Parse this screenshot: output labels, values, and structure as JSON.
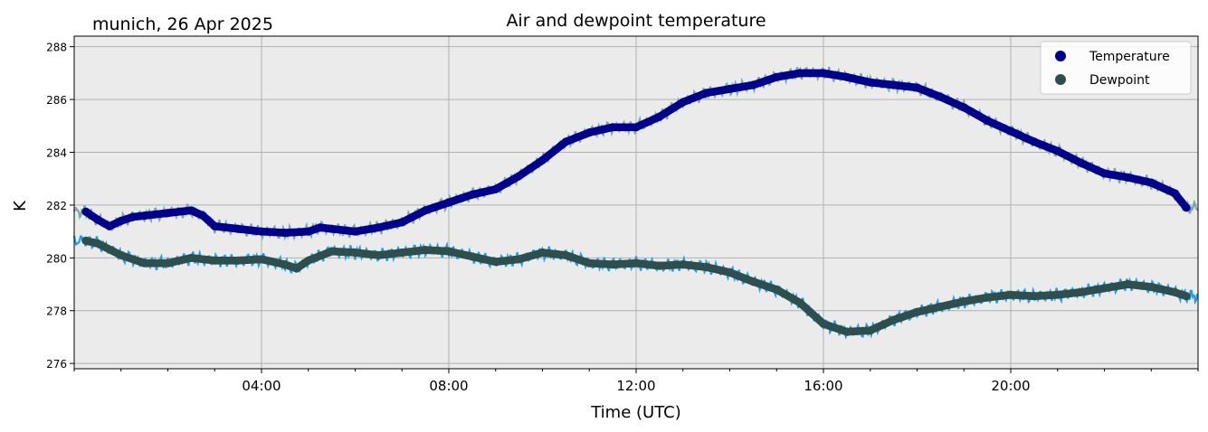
{
  "chart_data": {
    "type": "line",
    "title": "Air and dewpoint temperature",
    "subtitle": "munich, 26 Apr 2025",
    "xlabel": "Time (UTC)",
    "ylabel": "K",
    "xlim": [
      0,
      24
    ],
    "ylim": [
      275.8,
      288.4
    ],
    "x_ticks": [
      {
        "hour": 4,
        "label": "04:00"
      },
      {
        "hour": 8,
        "label": "08:00"
      },
      {
        "hour": 12,
        "label": "12:00"
      },
      {
        "hour": 16,
        "label": "16:00"
      },
      {
        "hour": 20,
        "label": "20:00"
      }
    ],
    "y_ticks": [
      276,
      278,
      280,
      282,
      284,
      286,
      288
    ],
    "grid": true,
    "legend_position": "top-right",
    "colors": {
      "plot_background": "#ebebeb",
      "grid": "#b0b0b0",
      "temperature_smooth": "#00008b",
      "temperature_raw": "#7aa7a9",
      "dewpoint_smooth": "#2f4f4f",
      "dewpoint_raw": "#1e9fe8"
    },
    "series": [
      {
        "name": "Temperature",
        "marker": "circle",
        "color": "#00008b",
        "raw_color": "#7aa7a9",
        "x": [
          0.25,
          0.5,
          0.75,
          1.0,
          1.25,
          1.5,
          2.0,
          2.5,
          2.75,
          3.0,
          3.5,
          4.0,
          4.5,
          5.0,
          5.25,
          5.5,
          6.0,
          6.5,
          7.0,
          7.5,
          8.0,
          8.5,
          9.0,
          9.5,
          10.0,
          10.5,
          11.0,
          11.5,
          12.0,
          12.5,
          13.0,
          13.5,
          14.0,
          14.5,
          15.0,
          15.5,
          16.0,
          16.5,
          17.0,
          17.5,
          18.0,
          18.5,
          19.0,
          19.5,
          20.0,
          20.5,
          21.0,
          21.5,
          22.0,
          22.5,
          23.0,
          23.5,
          23.75
        ],
        "values": [
          281.75,
          281.45,
          281.2,
          281.4,
          281.55,
          281.6,
          281.7,
          281.8,
          281.6,
          281.2,
          281.1,
          281.0,
          280.95,
          281.0,
          281.15,
          281.1,
          281.0,
          281.15,
          281.35,
          281.8,
          282.1,
          282.4,
          282.6,
          283.1,
          283.7,
          284.4,
          284.75,
          284.95,
          284.95,
          285.35,
          285.9,
          286.25,
          286.4,
          286.55,
          286.85,
          287.0,
          287.0,
          286.85,
          286.65,
          286.55,
          286.45,
          286.1,
          285.7,
          285.2,
          284.8,
          284.4,
          284.05,
          283.6,
          283.2,
          283.05,
          282.85,
          282.45,
          281.9
        ]
      },
      {
        "name": "Dewpoint",
        "marker": "circle",
        "color": "#2f4f4f",
        "raw_color": "#1e9fe8",
        "x": [
          0.25,
          0.5,
          1.0,
          1.5,
          2.0,
          2.5,
          3.0,
          3.5,
          4.0,
          4.5,
          4.75,
          5.0,
          5.5,
          6.0,
          6.5,
          7.0,
          7.5,
          8.0,
          8.5,
          9.0,
          9.5,
          10.0,
          10.5,
          11.0,
          11.5,
          12.0,
          12.5,
          13.0,
          13.5,
          14.0,
          14.5,
          15.0,
          15.5,
          16.0,
          16.5,
          17.0,
          17.5,
          18.0,
          18.5,
          19.0,
          19.5,
          20.0,
          20.5,
          21.0,
          21.5,
          22.0,
          22.5,
          23.0,
          23.5,
          23.75
        ],
        "values": [
          280.65,
          280.55,
          280.1,
          279.8,
          279.8,
          280.0,
          279.9,
          279.9,
          279.95,
          279.75,
          279.6,
          279.9,
          280.25,
          280.2,
          280.1,
          280.2,
          280.3,
          280.25,
          280.05,
          279.85,
          279.95,
          280.2,
          280.1,
          279.8,
          279.75,
          279.8,
          279.7,
          279.75,
          279.65,
          279.45,
          279.1,
          278.8,
          278.3,
          277.5,
          277.2,
          277.25,
          277.65,
          277.95,
          278.15,
          278.35,
          278.5,
          278.6,
          278.55,
          278.6,
          278.7,
          278.85,
          279.0,
          278.9,
          278.7,
          278.55
        ]
      }
    ]
  }
}
